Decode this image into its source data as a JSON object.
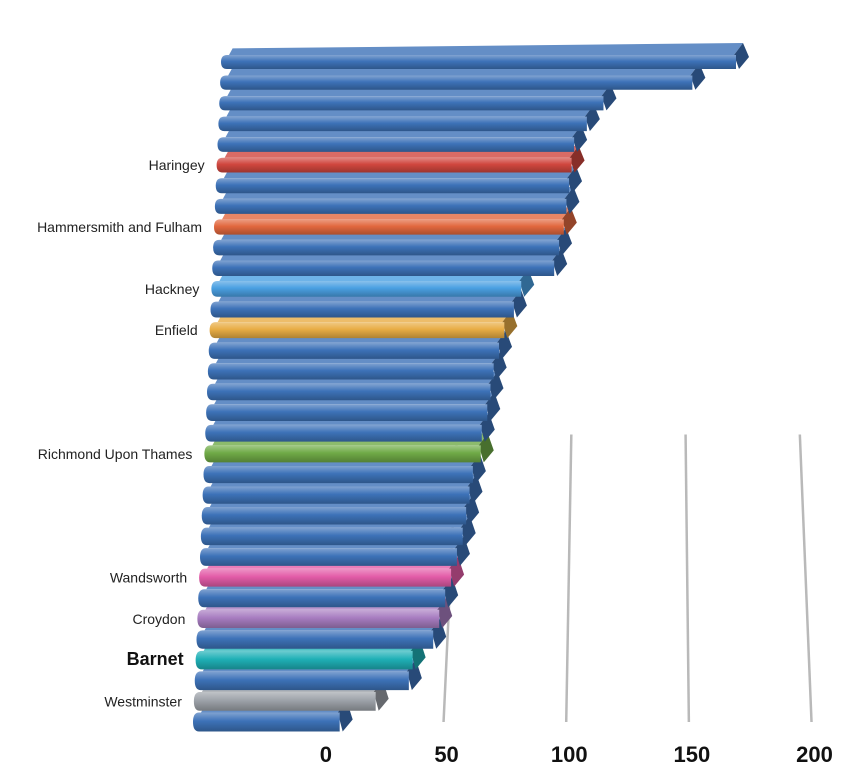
{
  "chart_data": {
    "type": "bar",
    "orientation": "horizontal",
    "style": "3d-perspective",
    "title": "",
    "xlabel": "",
    "ylabel": "",
    "xlim": [
      0,
      200
    ],
    "x_ticks": [
      "0",
      "50",
      "100",
      "150",
      "200"
    ],
    "grid": true,
    "legend": "none",
    "categories": [
      "",
      "",
      "",
      "",
      "",
      "Haringey",
      "",
      "",
      "Hammersmith and Fulham",
      "",
      "",
      "Hackney",
      "",
      "Enfield",
      "",
      "",
      "",
      "",
      "",
      "Richmond Upon Thames",
      "",
      "",
      "",
      "",
      "",
      "Wandsworth",
      "",
      "Croydon",
      "",
      "Barnet",
      "",
      "Westminster",
      ""
    ],
    "values": [
      178,
      156,
      112,
      104,
      98,
      97,
      96,
      95,
      94,
      92,
      90,
      75,
      72,
      68,
      66,
      64,
      63,
      62,
      60,
      60,
      57,
      56,
      55,
      54,
      52,
      50,
      48,
      46,
      44,
      36,
      35,
      22,
      8
    ],
    "highlight_label": "Barnet",
    "colors": {
      "default": "#3d72b8",
      "Haringey": "#d0463e",
      "Hammersmith and Fulham": "#e2683f",
      "Hackney": "#4aa0e2",
      "Enfield": "#e8ad45",
      "Richmond Upon Thames": "#6faa47",
      "Wandsworth": "#e35ca8",
      "Croydon": "#a77cc0",
      "Barnet": "#1fb0b6",
      "Westminster": "#9da2a9"
    }
  }
}
